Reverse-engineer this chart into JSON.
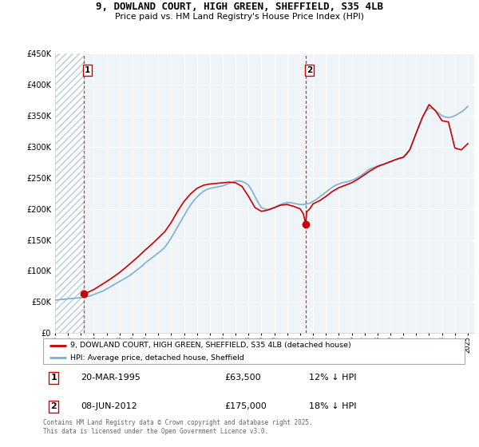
{
  "title": "9, DOWLAND COURT, HIGH GREEN, SHEFFIELD, S35 4LB",
  "subtitle": "Price paid vs. HM Land Registry's House Price Index (HPI)",
  "hpi_label": "HPI: Average price, detached house, Sheffield",
  "property_label": "9, DOWLAND COURT, HIGH GREEN, SHEFFIELD, S35 4LB (detached house)",
  "footnote": "Contains HM Land Registry data © Crown copyright and database right 2025.\nThis data is licensed under the Open Government Licence v3.0.",
  "sale1_date": "20-MAR-1995",
  "sale1_price": "£63,500",
  "sale1_hpi": "12% ↓ HPI",
  "sale2_date": "08-JUN-2012",
  "sale2_price": "£175,000",
  "sale2_hpi": "18% ↓ HPI",
  "ylim": [
    0,
    450000
  ],
  "yticks": [
    0,
    50000,
    100000,
    150000,
    200000,
    250000,
    300000,
    350000,
    400000,
    450000
  ],
  "property_color": "#cc0000",
  "hpi_color": "#7bafd4",
  "vline_color": "#cc0000",
  "hatch_face_color": "#dce8f0",
  "hatch_edge_color": "#b0c8d8",
  "grid_color": "#cccccc",
  "sale1_x": 1995.22,
  "sale1_y": 63500,
  "sale2_x": 2012.44,
  "sale2_y": 175000,
  "hpi_years": [
    1993,
    1993.25,
    1993.5,
    1993.75,
    1994,
    1994.25,
    1994.5,
    1994.75,
    1995,
    1995.25,
    1995.5,
    1995.75,
    1996,
    1996.25,
    1996.5,
    1996.75,
    1997,
    1997.25,
    1997.5,
    1997.75,
    1998,
    1998.25,
    1998.5,
    1998.75,
    1999,
    1999.25,
    1999.5,
    1999.75,
    2000,
    2000.25,
    2000.5,
    2000.75,
    2001,
    2001.25,
    2001.5,
    2001.75,
    2002,
    2002.25,
    2002.5,
    2002.75,
    2003,
    2003.25,
    2003.5,
    2003.75,
    2004,
    2004.25,
    2004.5,
    2004.75,
    2005,
    2005.25,
    2005.5,
    2005.75,
    2006,
    2006.25,
    2006.5,
    2006.75,
    2007,
    2007.25,
    2007.5,
    2007.75,
    2008,
    2008.25,
    2008.5,
    2008.75,
    2009,
    2009.25,
    2009.5,
    2009.75,
    2010,
    2010.25,
    2010.5,
    2010.75,
    2011,
    2011.25,
    2011.5,
    2011.75,
    2012,
    2012.25,
    2012.5,
    2012.75,
    2013,
    2013.25,
    2013.5,
    2013.75,
    2014,
    2014.25,
    2014.5,
    2014.75,
    2015,
    2015.25,
    2015.5,
    2015.75,
    2016,
    2016.25,
    2016.5,
    2016.75,
    2017,
    2017.25,
    2017.5,
    2017.75,
    2018,
    2018.25,
    2018.5,
    2018.75,
    2019,
    2019.25,
    2019.5,
    2019.75,
    2020,
    2020.25,
    2020.5,
    2020.75,
    2021,
    2021.25,
    2021.5,
    2021.75,
    2022,
    2022.25,
    2022.5,
    2022.75,
    2023,
    2023.25,
    2023.5,
    2023.75,
    2024,
    2024.25,
    2024.5,
    2024.75,
    2025
  ],
  "hpi_values": [
    53000,
    53500,
    54000,
    54500,
    55000,
    55500,
    56000,
    56500,
    57000,
    57500,
    58500,
    60000,
    62000,
    64000,
    66000,
    68000,
    71000,
    74000,
    77000,
    80000,
    83000,
    86000,
    89000,
    92000,
    96000,
    100000,
    104000,
    108000,
    113000,
    117000,
    121000,
    125000,
    129000,
    133000,
    138000,
    145000,
    153000,
    162000,
    171000,
    180000,
    189000,
    198000,
    206000,
    213000,
    219000,
    224000,
    228000,
    231000,
    233000,
    234000,
    235000,
    236000,
    237000,
    239000,
    241000,
    243000,
    245000,
    245000,
    244000,
    242000,
    238000,
    230000,
    220000,
    210000,
    202000,
    200000,
    199000,
    200000,
    202000,
    205000,
    207000,
    209000,
    210000,
    210000,
    209000,
    208000,
    207000,
    207000,
    208000,
    209000,
    212000,
    215000,
    219000,
    223000,
    227000,
    231000,
    235000,
    238000,
    240000,
    242000,
    243000,
    244000,
    246000,
    248000,
    251000,
    254000,
    258000,
    262000,
    265000,
    267000,
    269000,
    271000,
    272000,
    274000,
    276000,
    278000,
    280000,
    282000,
    283000,
    287000,
    295000,
    308000,
    322000,
    336000,
    348000,
    357000,
    362000,
    362000,
    358000,
    354000,
    350000,
    348000,
    347000,
    348000,
    350000,
    353000,
    356000,
    360000,
    365000
  ],
  "prop_years": [
    1995.22,
    1995.5,
    1996,
    1996.5,
    1997,
    1997.5,
    1998,
    1998.5,
    1999,
    1999.5,
    2000,
    2000.5,
    2001,
    2001.5,
    2002,
    2002.5,
    2003,
    2003.5,
    2004,
    2004.5,
    2005,
    2005.5,
    2006,
    2006.5,
    2007,
    2007.5,
    2008,
    2008.5,
    2009,
    2009.5,
    2010,
    2010.5,
    2011,
    2011.5,
    2012,
    2012.25,
    2012.44,
    2012.5,
    2012.75,
    2013,
    2013.5,
    2014,
    2014.5,
    2015,
    2015.5,
    2016,
    2016.5,
    2017,
    2017.5,
    2018,
    2018.5,
    2019,
    2019.5,
    2020,
    2020.5,
    2021,
    2021.5,
    2022,
    2022.5,
    2023,
    2023.5,
    2024,
    2024.5,
    2025
  ],
  "prop_values": [
    63500,
    65000,
    70000,
    76500,
    83000,
    90000,
    97500,
    106000,
    115000,
    124000,
    134000,
    143000,
    153000,
    163000,
    178000,
    196000,
    212000,
    224000,
    233000,
    238000,
    240000,
    241000,
    242000,
    243000,
    242000,
    236000,
    220000,
    202000,
    196000,
    198000,
    202000,
    206000,
    207000,
    204000,
    200000,
    192000,
    175000,
    195000,
    200000,
    208000,
    213000,
    220000,
    228000,
    234000,
    238000,
    242000,
    248000,
    255000,
    262000,
    268000,
    272000,
    276000,
    280000,
    283000,
    295000,
    322000,
    348000,
    368000,
    358000,
    342000,
    340000,
    298000,
    295000,
    305000
  ],
  "xtick_years": [
    1993,
    1994,
    1995,
    1996,
    1997,
    1998,
    1999,
    2000,
    2001,
    2002,
    2003,
    2004,
    2005,
    2006,
    2007,
    2008,
    2009,
    2010,
    2011,
    2012,
    2013,
    2014,
    2015,
    2016,
    2017,
    2018,
    2019,
    2020,
    2021,
    2022,
    2023,
    2024,
    2025
  ]
}
